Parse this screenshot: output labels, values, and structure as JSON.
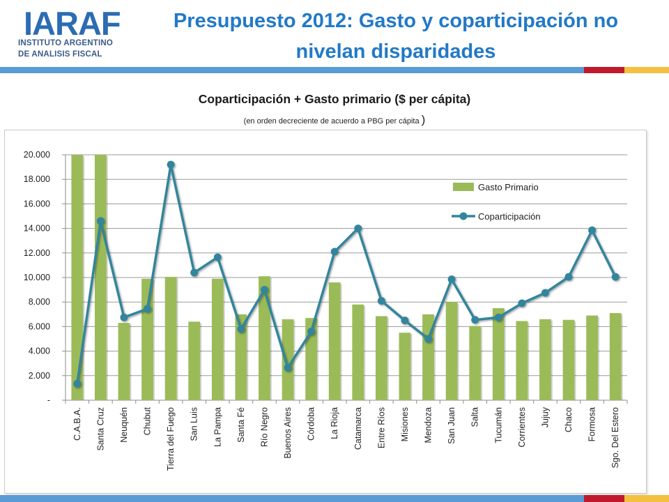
{
  "logo": {
    "mark": "IARAF",
    "line1": "INSTITUTO ARGENTINO",
    "line2": "DE ANALISIS FISCAL"
  },
  "header": {
    "title_line1": "Presupuesto 2012: Gasto y coparticipación no",
    "title_line2": "nivelan disparidades"
  },
  "chart_data": {
    "type": "bar",
    "title": "Coparticipación + Gasto primario ($ per cápita)",
    "subtitle": "(en orden decreciente de acuerdo a PBG per cápita",
    "subtitle_close": ")",
    "categories": [
      "C.A.B.A.",
      "Santa Cruz",
      "Neuquén",
      "Chubut",
      "Tierra del Fuego",
      "San Luis",
      "La Pampa",
      "Santa Fé",
      "Río Negro",
      "Buenos Aires",
      "Córdoba",
      "La Rioja",
      "Catamarca",
      "Entre Ríos",
      "Misiones",
      "Mendoza",
      "San Juan",
      "Salta",
      "Tucumán",
      "Corrientes",
      "Jujuy",
      "Chaco",
      "Formosa",
      "Sgo. Del Estero"
    ],
    "series": [
      {
        "name": "Gasto Primario",
        "type": "bar",
        "values": [
          20000,
          20000,
          6300,
          9900,
          10050,
          6400,
          9900,
          7000,
          10100,
          6600,
          6700,
          9600,
          7800,
          6850,
          5500,
          7000,
          8000,
          6050,
          7500,
          6450,
          6600,
          6550,
          6900,
          7100
        ]
      },
      {
        "name": "Coparticipación",
        "type": "line",
        "values": [
          1350,
          14600,
          6750,
          7450,
          19200,
          10400,
          11650,
          5800,
          9000,
          2650,
          5600,
          12100,
          14000,
          8100,
          6500,
          5000,
          9850,
          6550,
          6750,
          7900,
          8750,
          10050,
          13850,
          10050
        ]
      }
    ],
    "ylim": [
      0,
      20000
    ],
    "yticks": [
      {
        "value": 0,
        "label": "-"
      },
      {
        "value": 2000,
        "label": "2.000"
      },
      {
        "value": 4000,
        "label": "4.000"
      },
      {
        "value": 6000,
        "label": "6.000"
      },
      {
        "value": 8000,
        "label": "8.000"
      },
      {
        "value": 10000,
        "label": "10.000"
      },
      {
        "value": 12000,
        "label": "12.000"
      },
      {
        "value": 14000,
        "label": "14.000"
      },
      {
        "value": 16000,
        "label": "16.000"
      },
      {
        "value": 18000,
        "label": "18.000"
      },
      {
        "value": 20000,
        "label": "20.000"
      }
    ],
    "grid": true,
    "legend_position": "right",
    "colors": {
      "bar": "#9bbb59",
      "line": "#31859c",
      "grid": "#9a9a9a"
    }
  },
  "colors": {
    "title": "#2279c6",
    "band_blue": "#5b9bd5",
    "band_red": "#c0192d",
    "band_yellow": "#f4c040"
  }
}
